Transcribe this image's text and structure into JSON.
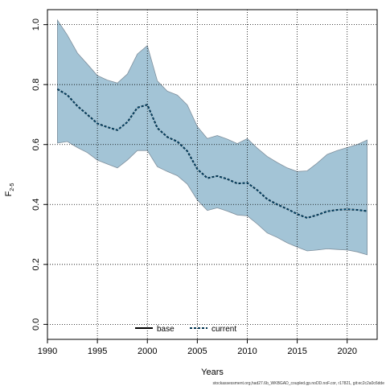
{
  "chart_data": {
    "type": "line",
    "title": "",
    "xlabel": "Years",
    "ylabel_main": "F",
    "ylabel_sub": "2-5",
    "xlim": [
      1990,
      2023
    ],
    "ylim": [
      -0.05,
      1.05
    ],
    "xticks": [
      1990,
      1995,
      2000,
      2005,
      2010,
      2015,
      2020
    ],
    "yticks": [
      0.0,
      0.2,
      0.4,
      0.6,
      0.8,
      1.0
    ],
    "xtick_labels": [
      "1990",
      "1995",
      "2000",
      "2005",
      "2010",
      "2015",
      "2020"
    ],
    "ytick_labels": [
      "0.0",
      "0.2",
      "0.4",
      "0.6",
      "0.8",
      "1.0"
    ],
    "grid": true,
    "legend_position": "bottom",
    "legend": [
      {
        "name": "base",
        "color": "#000000",
        "style": "solid"
      },
      {
        "name": "current",
        "color": "#00507d",
        "style": "dashed"
      }
    ],
    "band_color": "#a3c4d6",
    "band_edge_color": "#7f8f9c",
    "x": [
      1991,
      1992,
      1993,
      1994,
      1995,
      1996,
      1997,
      1998,
      1999,
      2000,
      2001,
      2002,
      2003,
      2004,
      2005,
      2006,
      2007,
      2008,
      2009,
      2010,
      2011,
      2012,
      2013,
      2014,
      2015,
      2016,
      2017,
      2018,
      2019,
      2020,
      2021,
      2022
    ],
    "series": [
      {
        "name": "current",
        "values": [
          0.785,
          0.765,
          0.728,
          0.7,
          0.67,
          0.658,
          0.648,
          0.675,
          0.723,
          0.733,
          0.655,
          0.625,
          0.61,
          0.578,
          0.518,
          0.488,
          0.495,
          0.485,
          0.47,
          0.472,
          0.448,
          0.418,
          0.4,
          0.385,
          0.368,
          0.355,
          0.365,
          0.377,
          0.382,
          0.384,
          0.382,
          0.378
        ],
        "lower": [
          0.605,
          0.61,
          0.59,
          0.573,
          0.548,
          0.535,
          0.522,
          0.548,
          0.58,
          0.58,
          0.526,
          0.51,
          0.496,
          0.468,
          0.415,
          0.38,
          0.389,
          0.378,
          0.365,
          0.362,
          0.335,
          0.305,
          0.29,
          0.272,
          0.258,
          0.245,
          0.248,
          0.252,
          0.25,
          0.248,
          0.242,
          0.232
        ],
        "upper": [
          1.015,
          0.965,
          0.905,
          0.868,
          0.83,
          0.815,
          0.805,
          0.835,
          0.902,
          0.93,
          0.812,
          0.778,
          0.765,
          0.732,
          0.66,
          0.62,
          0.63,
          0.618,
          0.603,
          0.62,
          0.588,
          0.56,
          0.54,
          0.522,
          0.51,
          0.512,
          0.538,
          0.567,
          0.58,
          0.59,
          0.6,
          0.615
        ]
      }
    ],
    "footer_text": "stockassessment.org,had27.6b_WKBGAD_coupled.gp.noDD.noF.cor, r17821, git:ec2c2a0c6dde"
  }
}
